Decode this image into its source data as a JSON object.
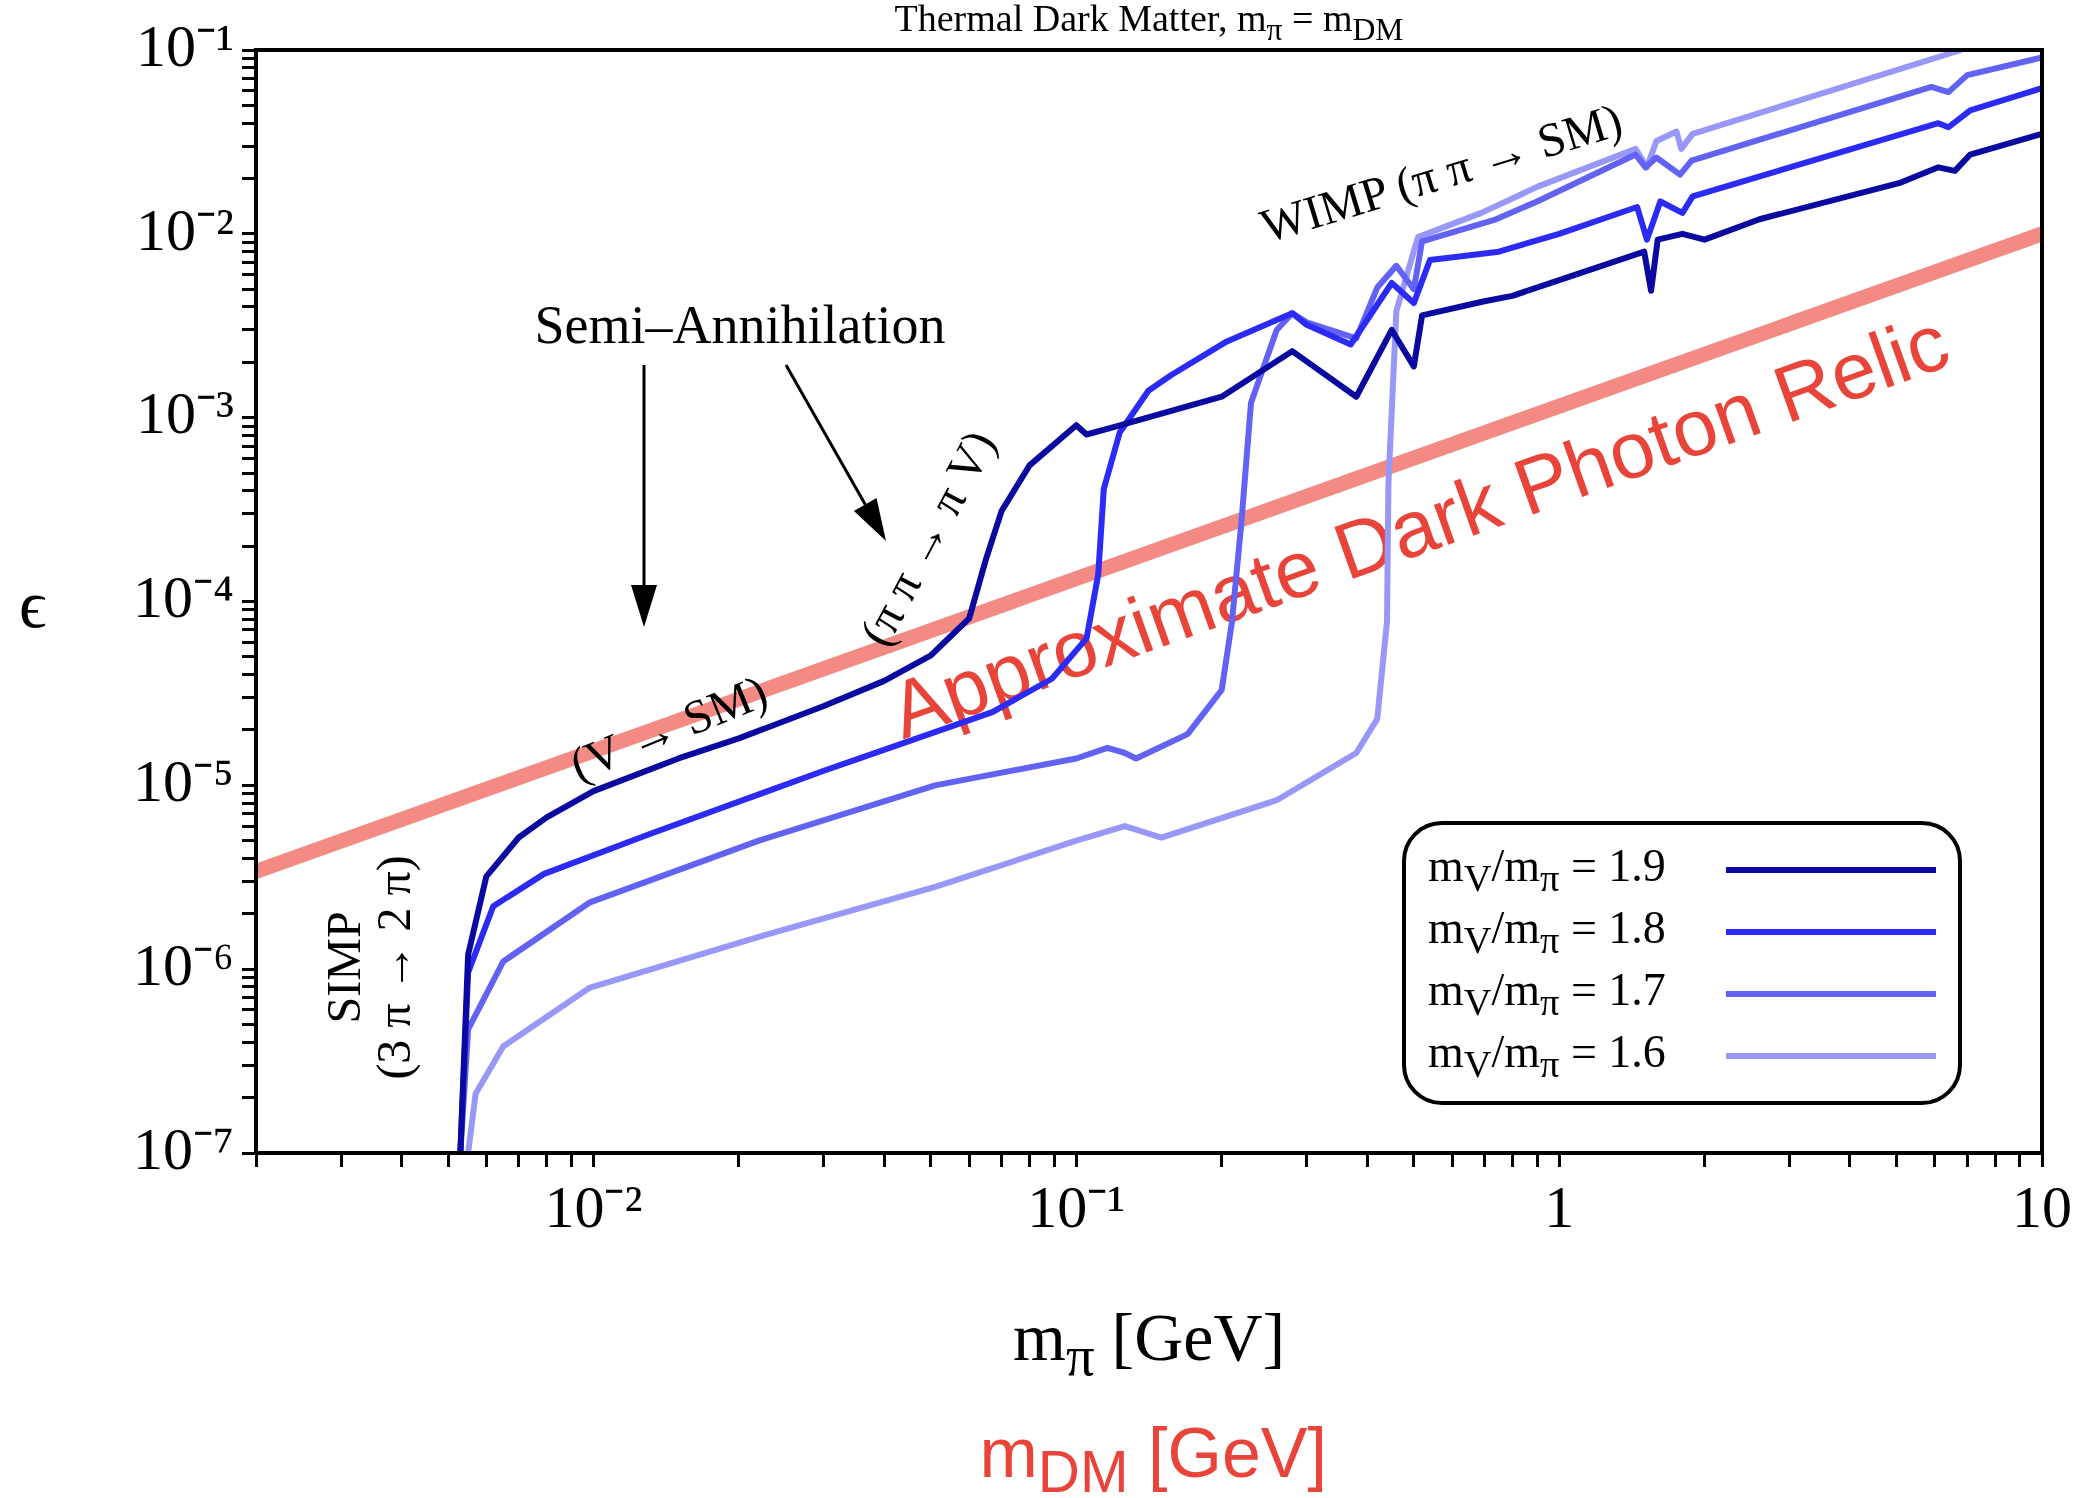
{
  "chart_data": {
    "type": "line",
    "title": "Thermal Dark Matter, m$_{π}$ = m$_{DM}$",
    "xlabel": "m$_{π}$ [GeV]",
    "ylabel": "ϵ",
    "log": "xy",
    "marker": "none",
    "line_style": "solid",
    "legend": "bottom right",
    "xlim": [
      0.002,
      10
    ],
    "ylim": [
      1e-07,
      0.1
    ],
    "xticks": [
      {
        "value": 0.002,
        "label": null
      },
      {
        "value": 0.003,
        "label": null
      },
      {
        "value": 0.004,
        "label": null
      },
      {
        "value": 0.005,
        "label": null
      },
      {
        "value": 0.006,
        "label": null
      },
      {
        "value": 0.007,
        "label": null
      },
      {
        "value": 0.008,
        "label": null
      },
      {
        "value": 0.009,
        "label": null
      },
      {
        "value": 0.01,
        "label": "10⁻²"
      },
      {
        "value": 0.02,
        "label": null
      },
      {
        "value": 0.03,
        "label": null
      },
      {
        "value": 0.04,
        "label": null
      },
      {
        "value": 0.05,
        "label": null
      },
      {
        "value": 0.06,
        "label": null
      },
      {
        "value": 0.07,
        "label": null
      },
      {
        "value": 0.08,
        "label": null
      },
      {
        "value": 0.09,
        "label": null
      },
      {
        "value": 0.1,
        "label": "10⁻¹"
      },
      {
        "value": 0.2,
        "label": null
      },
      {
        "value": 0.3,
        "label": null
      },
      {
        "value": 0.4,
        "label": null
      },
      {
        "value": 0.5,
        "label": null
      },
      {
        "value": 0.6,
        "label": null
      },
      {
        "value": 0.7,
        "label": null
      },
      {
        "value": 0.8,
        "label": null
      },
      {
        "value": 0.9,
        "label": null
      },
      1,
      {
        "value": 2,
        "label": null
      },
      {
        "value": 3,
        "label": null
      },
      {
        "value": 4,
        "label": null
      },
      {
        "value": 5,
        "label": null
      },
      {
        "value": 6,
        "label": null
      },
      {
        "value": 7,
        "label": null
      },
      {
        "value": 8,
        "label": null
      },
      {
        "value": 9,
        "label": null
      },
      10
    ],
    "yticks": [
      {
        "value": 1e-07,
        "label": "10⁻⁷"
      },
      {
        "value": 2e-07,
        "label": null
      },
      {
        "value": 3e-07,
        "label": null
      },
      {
        "value": 4e-07,
        "label": null
      },
      {
        "value": 5e-07,
        "label": null
      },
      {
        "value": 6e-07,
        "label": null
      },
      {
        "value": 7e-07,
        "label": null
      },
      {
        "value": 8e-07,
        "label": null
      },
      {
        "value": 9e-07,
        "label": null
      },
      {
        "value": 1e-06,
        "label": "10⁻⁶"
      },
      {
        "value": 2e-06,
        "label": null
      },
      {
        "value": 3e-06,
        "label": null
      },
      {
        "value": 4e-06,
        "label": null
      },
      {
        "value": 5e-06,
        "label": null
      },
      {
        "value": 6e-06,
        "label": null
      },
      {
        "value": 7e-06,
        "label": null
      },
      {
        "value": 8e-06,
        "label": null
      },
      {
        "value": 9e-06,
        "label": null
      },
      {
        "value": 1e-05,
        "label": "10⁻⁵"
      },
      {
        "value": 2e-05,
        "label": null
      },
      {
        "value": 3e-05,
        "label": null
      },
      {
        "value": 4e-05,
        "label": null
      },
      {
        "value": 5e-05,
        "label": null
      },
      {
        "value": 6e-05,
        "label": null
      },
      {
        "value": 7e-05,
        "label": null
      },
      {
        "value": 8e-05,
        "label": null
      },
      {
        "value": 9e-05,
        "label": null
      },
      {
        "value": 0.0001,
        "label": "10⁻⁴"
      },
      {
        "value": 0.0002,
        "label": null
      },
      {
        "value": 0.0003,
        "label": null
      },
      {
        "value": 0.0004,
        "label": null
      },
      {
        "value": 0.0005,
        "label": null
      },
      {
        "value": 0.0006,
        "label": null
      },
      {
        "value": 0.0007,
        "label": null
      },
      {
        "value": 0.0008,
        "label": null
      },
      {
        "value": 0.0009,
        "label": null
      },
      {
        "value": 0.001,
        "label": "10⁻³"
      },
      {
        "value": 0.002,
        "label": null
      },
      {
        "value": 0.003,
        "label": null
      },
      {
        "value": 0.004,
        "label": null
      },
      {
        "value": 0.005,
        "label": null
      },
      {
        "value": 0.006,
        "label": null
      },
      {
        "value": 0.007,
        "label": null
      },
      {
        "value": 0.008,
        "label": null
      },
      {
        "value": 0.009,
        "label": null
      },
      {
        "value": 0.01,
        "label": "10⁻²"
      },
      {
        "value": 0.02,
        "label": null
      },
      {
        "value": 0.03,
        "label": null
      },
      {
        "value": 0.04,
        "label": null
      },
      {
        "value": 0.05,
        "label": null
      },
      {
        "value": 0.06,
        "label": null
      },
      {
        "value": 0.07,
        "label": null
      },
      {
        "value": 0.08,
        "label": null
      },
      {
        "value": 0.09,
        "label": null
      },
      {
        "value": 0.1,
        "label": "10⁻¹"
      }
    ],
    "series": [
      {
        "name": "m$_{V}$/m$_{π}$ = 1.9",
        "color": "#0a0aa0",
        "x": [
          0.0053,
          0.0055,
          0.006,
          0.007,
          0.008,
          0.01,
          0.015,
          0.02,
          0.03,
          0.04,
          0.05,
          0.06,
          0.065,
          0.07,
          0.08,
          0.1,
          0.105,
          0.12,
          0.2,
          0.28,
          0.38,
          0.45,
          0.5,
          0.52,
          0.7,
          0.8,
          1,
          1.5,
          1.55,
          1.6,
          1.8,
          2,
          2.6,
          5.1,
          6.1,
          6.6,
          7.1,
          10
        ],
        "values": [
          1e-07,
          1.2e-06,
          3.2e-06,
          5.2e-06,
          6.7e-06,
          9.3e-06,
          1.4e-05,
          1.8e-05,
          2.7e-05,
          3.7e-05,
          5.1e-05,
          8.1e-05,
          0.00017,
          0.00031,
          0.00055,
          0.00091,
          0.00081,
          0.00089,
          0.0013,
          0.0023,
          0.0013,
          0.003,
          0.0019,
          0.0036,
          0.0043,
          0.0046,
          0.0056,
          0.008,
          0.0049,
          0.0093,
          0.01,
          0.0093,
          0.012,
          0.019,
          0.023,
          0.022,
          0.027,
          0.035
        ]
      },
      {
        "name": "m$_{V}$/m$_{π}$ = 1.8",
        "color": "#2b2bf5",
        "x": [
          0.0053,
          0.0055,
          0.0062,
          0.0079,
          0.013,
          0.03,
          0.067,
          0.089,
          0.105,
          0.111,
          0.114,
          0.123,
          0.141,
          0.157,
          0.205,
          0.28,
          0.3,
          0.37,
          0.45,
          0.5,
          0.54,
          0.75,
          1,
          1.45,
          1.52,
          1.62,
          1.8,
          1.89,
          6.1,
          6.4,
          7.1,
          10
        ],
        "values": [
          1e-07,
          9.6e-07,
          2.2e-06,
          3.3e-06,
          5.4e-06,
          1.2e-05,
          2.5e-05,
          3.8e-05,
          6.3e-05,
          0.00014,
          0.00041,
          0.00083,
          0.0014,
          0.0017,
          0.0026,
          0.0037,
          0.0032,
          0.0025,
          0.0054,
          0.0042,
          0.0072,
          0.008,
          0.01,
          0.014,
          0.0093,
          0.015,
          0.013,
          0.016,
          0.04,
          0.038,
          0.047,
          0.062
        ]
      },
      {
        "name": "m$_{V}$/m$_{π}$ = 1.7",
        "color": "#6262f5",
        "x": [
          0.0053,
          0.0055,
          0.0065,
          0.0098,
          0.022,
          0.051,
          0.1,
          0.116,
          0.126,
          0.133,
          0.17,
          0.2,
          0.21,
          0.22,
          0.23,
          0.26,
          0.28,
          0.3,
          0.38,
          0.42,
          0.46,
          0.5,
          0.52,
          0.74,
          0.9,
          1.44,
          1.51,
          1.59,
          1.78,
          1.88,
          5.9,
          6.4,
          7,
          10
        ],
        "values": [
          1e-07,
          4.7e-07,
          1.1e-06,
          2.3e-06,
          5e-06,
          1e-05,
          1.4e-05,
          1.6e-05,
          1.5e-05,
          1.4e-05,
          1.9e-05,
          3.3e-05,
          7.7e-05,
          0.00028,
          0.0012,
          0.003,
          0.0037,
          0.0033,
          0.0027,
          0.0051,
          0.0067,
          0.005,
          0.0091,
          0.012,
          0.015,
          0.027,
          0.023,
          0.026,
          0.021,
          0.025,
          0.063,
          0.059,
          0.073,
          0.091
        ]
      },
      {
        "name": "m$_{V}$/m$_{π}$ = 1.6",
        "color": "#9898f8",
        "x": [
          0.0055,
          0.0057,
          0.0065,
          0.0098,
          0.022,
          0.051,
          0.1,
          0.126,
          0.15,
          0.26,
          0.38,
          0.42,
          0.44,
          0.443,
          0.46,
          0.51,
          0.69,
          0.9,
          1.44,
          1.52,
          1.59,
          1.75,
          1.79,
          1.89,
          6.8
        ],
        "values": [
          1e-07,
          2.1e-07,
          3.8e-07,
          7.9e-07,
          1.5e-06,
          2.8e-06,
          5e-06,
          6e-06,
          5.2e-06,
          8.3e-06,
          1.5e-05,
          2.3e-05,
          7.8e-05,
          0.00044,
          0.0038,
          0.0096,
          0.013,
          0.018,
          0.029,
          0.023,
          0.032,
          0.036,
          0.029,
          0.035,
          0.1
        ]
      },
      {
        "color": "#f07068",
        "x": [
          0.002,
          10
        ],
        "values": [
          3.4e-06,
          0.01
        ]
      }
    ],
    "annotations": [
      "Semi–Annihilation",
      "(V → SM)",
      "(π π → π V)",
      "WIMP (π π → SM)",
      "SIMP\n(3 π → 2 π)",
      "m$_{DM}$ [GeV]",
      "Approximate Dark Photon Relic"
    ]
  }
}
